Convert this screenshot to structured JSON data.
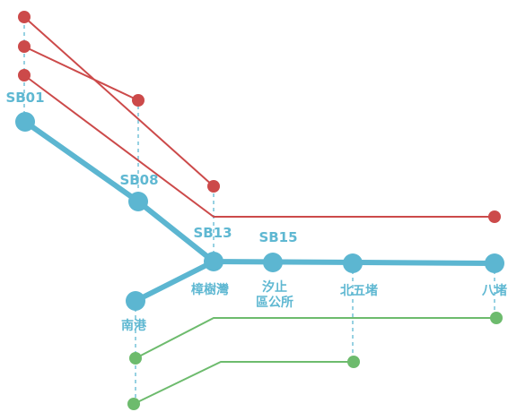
{
  "colors": {
    "main_line": "#5cb6d1",
    "red_line": "#cc4a4a",
    "green_line": "#6dbb6d",
    "connector": "#5fb8d2",
    "background": "#ffffff"
  },
  "stations": {
    "sb01": {
      "code": "SB01"
    },
    "sb08": {
      "code": "SB08"
    },
    "sb13": {
      "code": "SB13",
      "name": "樟樹灣"
    },
    "sb15": {
      "code": "SB15",
      "name_line1": "汐止",
      "name_line2": "區公所"
    },
    "beiwudu": {
      "name": "北五堵"
    },
    "badu": {
      "name": "八堵"
    },
    "nangang": {
      "name": "南港"
    }
  }
}
